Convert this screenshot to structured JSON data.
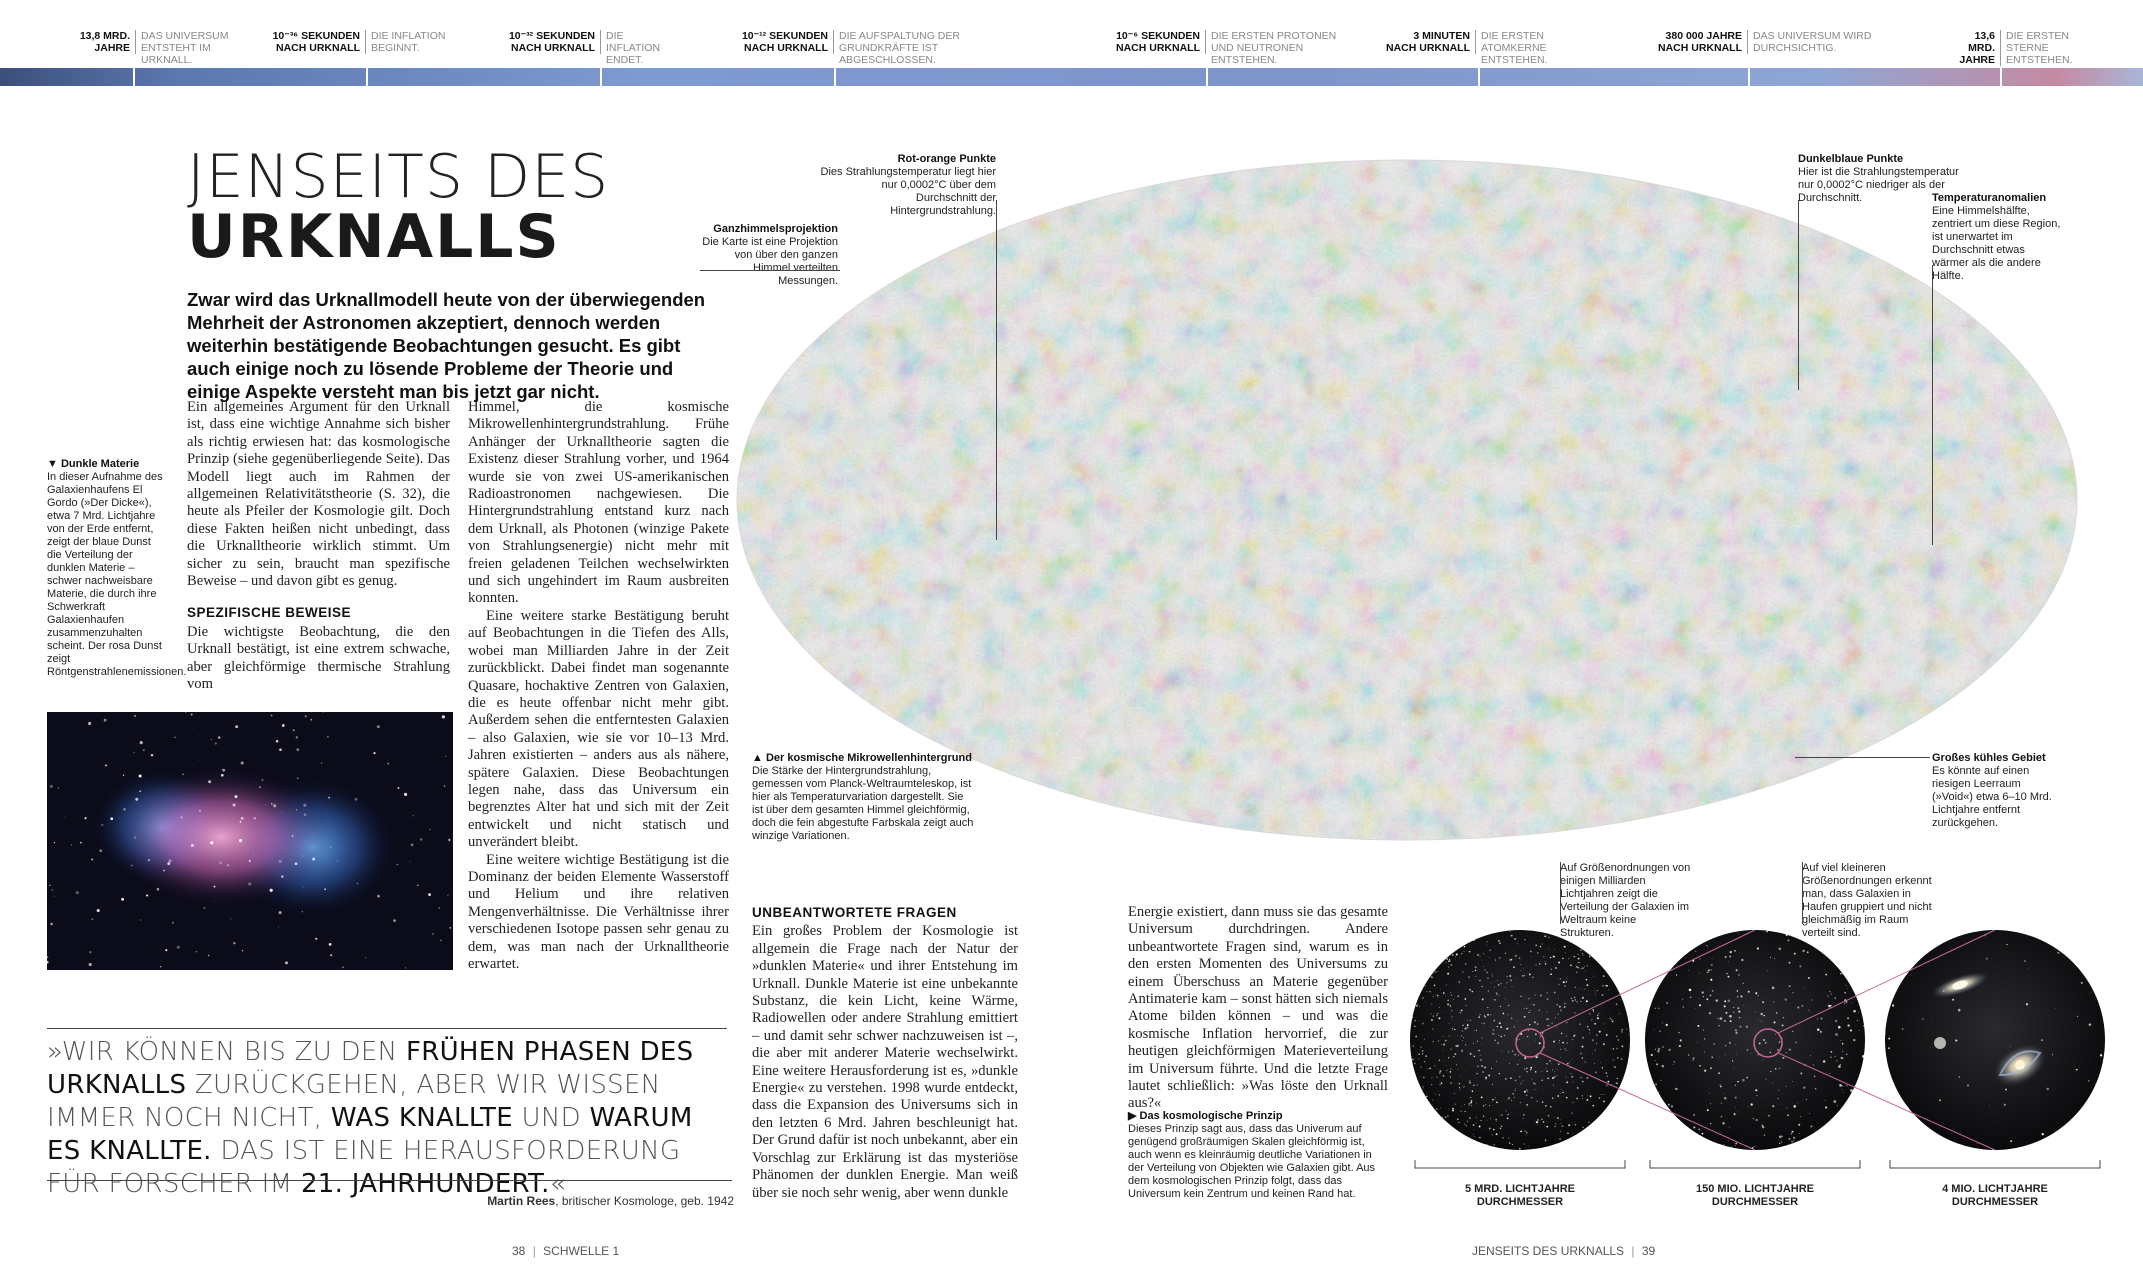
{
  "timeline": [
    {
      "time": "13,8 MRD. JAHRE",
      "desc": "DAS UNIVERSUM ENTSTEHT IM URKNALL."
    },
    {
      "time": "10⁻³⁶ SEKUNDEN NACH URKNALL",
      "desc": "DIE INFLATION BEGINNT."
    },
    {
      "time": "10⁻³² SEKUNDEN NACH URKNALL",
      "desc": "DIE INFLATION ENDET."
    },
    {
      "time": "10⁻¹² SEKUNDEN NACH URKNALL",
      "desc": "DIE AUFSPALTUNG DER GRUNDKRÄFTE IST ABGESCHLOSSEN."
    },
    {
      "time": "10⁻⁶ SEKUNDEN NACH URKNALL",
      "desc": "DIE ERSTEN PROTONEN UND NEUTRONEN ENTSTEHEN."
    },
    {
      "time": "3 MINUTEN NACH URKNALL",
      "desc": "DIE ERSTEN ATOMKERNE ENTSTEHEN."
    },
    {
      "time": "380 000 JAHRE NACH URKNALL",
      "desc": "DAS UNIVERSUM WIRD DURCHSICHTIG."
    },
    {
      "time": "13,6 MRD. JAHRE",
      "desc": "DIE ERSTEN STERNE ENTSTEHEN."
    }
  ],
  "title": {
    "line1": "JENSEITS DES",
    "line2": "URKNALLS"
  },
  "intro": "Zwar wird das Urknallmodell heute von der überwiegenden Mehrheit der Astronomen akzeptiert, dennoch werden weiterhin bestätigende Beobachtungen gesucht. Es gibt auch einige noch zu lösende Probleme der Theorie und einige Aspekte versteht man bis jetzt gar nicht.",
  "col1": {
    "p1": "Ein allgemeines Argument für den Urknall ist, dass eine wichtige Annahme sich bisher als richtig erwiesen hat: das kosmologische Prinzip (siehe gegenüberliegende Seite). Das Modell liegt auch im Rahmen der allgemeinen Relativitätstheorie (S. 32), die heute als Pfeiler der Kosmologie gilt. Doch diese Fakten heißen nicht unbedingt, dass die Urknalltheorie wirklich stimmt. Um sicher zu sein, braucht man spezifische Beweise – und davon gibt es genug.",
    "heading": "SPEZIFISCHE BEWEISE",
    "p2": "Die wichtigste Beobachtung, die den Urknall bestätigt, ist eine extrem schwache, aber gleichförmige thermische Strahlung vom"
  },
  "col2": {
    "p1": "Himmel, die kosmische Mikrowellenhintergrundstrahlung. Frühe Anhänger der Urknalltheorie sagten die Existenz dieser Strahlung vorher, und 1964 wurde sie von zwei US-amerikanischen Radioastronomen nachgewiesen. Die Hintergrundstrahlung entstand kurz nach dem Urknall, als Photonen (winzige Pakete von Strahlungsenergie) nicht mehr mit freien geladenen Teilchen wechselwirkten und sich ungehindert im Raum ausbreiten konnten.",
    "p2": "Eine weitere starke Bestätigung beruht auf Beobachtungen in die Tiefen des Alls, wobei man Milliarden Jahre in der Zeit zurückblickt. Dabei findet man sogenannte Quasare, hochaktive Zentren von Galaxien, die es heute offenbar nicht mehr gibt. Außerdem sehen die entferntesten Galaxien – also Galaxien, wie sie vor 10–13 Mrd. Jahren existierten – anders aus als nähere, spätere Galaxien. Diese Beobachtungen legen nahe, dass das Universum ein begrenztes Alter hat und sich mit der Zeit entwickelt und nicht statisch und unverändert bleibt.",
    "p3": "Eine weitere wichtige Bestätigung ist die Dominanz der beiden Elemente Wasserstoff und Helium und ihre relativen Mengenverhältnisse. Die Verhältnisse ihrer verschiedenen Isotope passen sehr genau zu dem, was man nach der Urknalltheorie erwartet."
  },
  "col3": {
    "heading": "UNBEANTWORTETE FRAGEN",
    "p1": "Ein großes Problem der Kosmologie ist allgemein die Frage nach der Natur der »dunklen Materie« und ihrer Entstehung im Urknall. Dunkle Materie ist eine unbekannte Substanz, die kein Licht, keine Wärme, Radiowellen oder andere Strahlung emittiert – und damit sehr schwer nachzuweisen ist –, die aber mit anderer Materie wechselwirkt. Eine weitere Herausforderung ist es, »dunkle Energie« zu verstehen. 1998 wurde entdeckt, dass die Expansion des Universums sich in den letzten 6 Mrd. Jahren beschleunigt hat. Der Grund dafür ist noch unbekannt, aber ein Vorschlag zur Erklärung ist das mysteriöse Phänomen der dunklen Energie. Man weiß über sie noch sehr wenig, aber wenn dunkle"
  },
  "col4": {
    "p1": "Energie existiert, dann muss sie das gesamte Universum durchdringen. Andere unbeantwortete Fragen sind, warum es in den ersten Momenten des Universums zu einem Überschuss an Materie gegenüber Antimaterie kam – sonst hätten sich niemals Atome bilden können – und was die kosmische Inflation hervorrief, die zur heutigen gleichförmigen Materieverteilung im Universum führte. Und die letzte Frage lautet schließlich: »Was löste den Urknall aus?«"
  },
  "captions": {
    "dark_matter_title": "▼ Dunkle Materie",
    "dark_matter_text": "In dieser Aufnahme des Galaxienhaufens El Gordo (»Der Dicke«), etwa 7 Mrd. Lichtjahre von der Erde entfernt, zeigt der blaue Dunst die Verteilung der dunklen Materie – schwer nachweisbare Materie, die durch ihre Schwerkraft Galaxienhaufen zusammenzuhalten scheint. Der rosa Dunst zeigt Röntgenstrahlenemissionen.",
    "allsky_title": "Ganzhimmelsprojektion",
    "allsky_text": "Die Karte ist eine Projektion von über den ganzen Himmel verteilten Messungen.",
    "red_title": "Rot-orange Punkte",
    "red_text": "Dies Strahlungstemperatur liegt hier nur 0,0002°C über dem Durchschnitt der Hintergrundstrahlung.",
    "blue_title": "Dunkelblaue Punkte",
    "blue_text": "Hier ist die Strahlungstemperatur nur 0,0002°C niedriger als der Durchschnitt.",
    "anomaly_title": "Temperaturanomalien",
    "anomaly_text": "Eine Himmelshälfte, zentriert um diese Region, ist unerwartet im Durchschnitt etwas wärmer als die andere Hälfte.",
    "cmb_title": "▲ Der kosmische Mikrowellenhintergrund",
    "cmb_text": "Die Stärke der Hintergrundstrahlung, gemessen vom Planck-Weltraumteleskop, ist hier als Temperaturvariation dargestellt. Sie ist über dem gesamten Himmel gleichförmig, doch die fein abgestufte Farbskala zeigt auch winzige Variationen.",
    "void_title": "Großes kühles Gebiet",
    "void_text": "Es könnte auf einen riesigen Leerraum (»Void«) etwa 6–10 Mrd. Lichtjahre entfernt zurückgehen.",
    "large_scale": "Auf Größenordnungen von einigen Milliarden Lichtjahren zeigt die Verteilung der Galaxien im Weltraum keine Strukturen.",
    "small_scale": "Auf viel kleineren Größenordnungen erkennt man, dass Galaxien in Haufen gruppiert und nicht gleichmäßig im Raum verteilt sind.",
    "principle_title": "▶ Das kosmologische Prinzip",
    "principle_text": "Dieses Prinzip sagt aus, dass das Univerum auf genügend großräumigen Skalen gleichförmig ist, auch wenn es kleinräumig deutliche Variationen in der Verteilung von Objekten wie Galaxien gibt. Aus dem kosmologischen Prinzip folgt, dass das Universum kein Zentrum und keinen Rand hat."
  },
  "circles": [
    {
      "label": "5 MRD. LICHTJAHRE DURCHMESSER"
    },
    {
      "label": "150 MIO. LICHTJAHRE DURCHMESSER"
    },
    {
      "label": "4 MIO. LICHTJAHRE DURCHMESSER"
    }
  ],
  "quote": {
    "part1": "»WIR KÖNNEN BIS ZU DEN ",
    "bold1": "FRÜHEN PHASEN DES URKNALLS",
    "part2": " ZURÜCKGEHEN, ABER WIR WISSEN IMMER NOCH NICHT, ",
    "bold2": "WAS KNALLTE",
    "part3": " UND ",
    "bold3": "WARUM ES KNALLTE.",
    "part4": " DAS IST EINE HERAUSFORDERUNG FÜR FORSCHER IM ",
    "bold4": "21. JAHRHUNDERT.",
    "part5": "«",
    "author_name": "Martin Rees",
    "author_desc": ", britischer Kosmologe, geb. 1942"
  },
  "footer": {
    "left_num": "38",
    "left_label": "SCHWELLE 1",
    "right_label": "JENSEITS DES URKNALLS",
    "right_num": "39"
  },
  "colors": {
    "cmb_red": "#e07a2e",
    "cmb_blue": "#2f5fae",
    "cmb_yellow": "#e8d27a",
    "timeline_bar": "#7f9ad0"
  }
}
